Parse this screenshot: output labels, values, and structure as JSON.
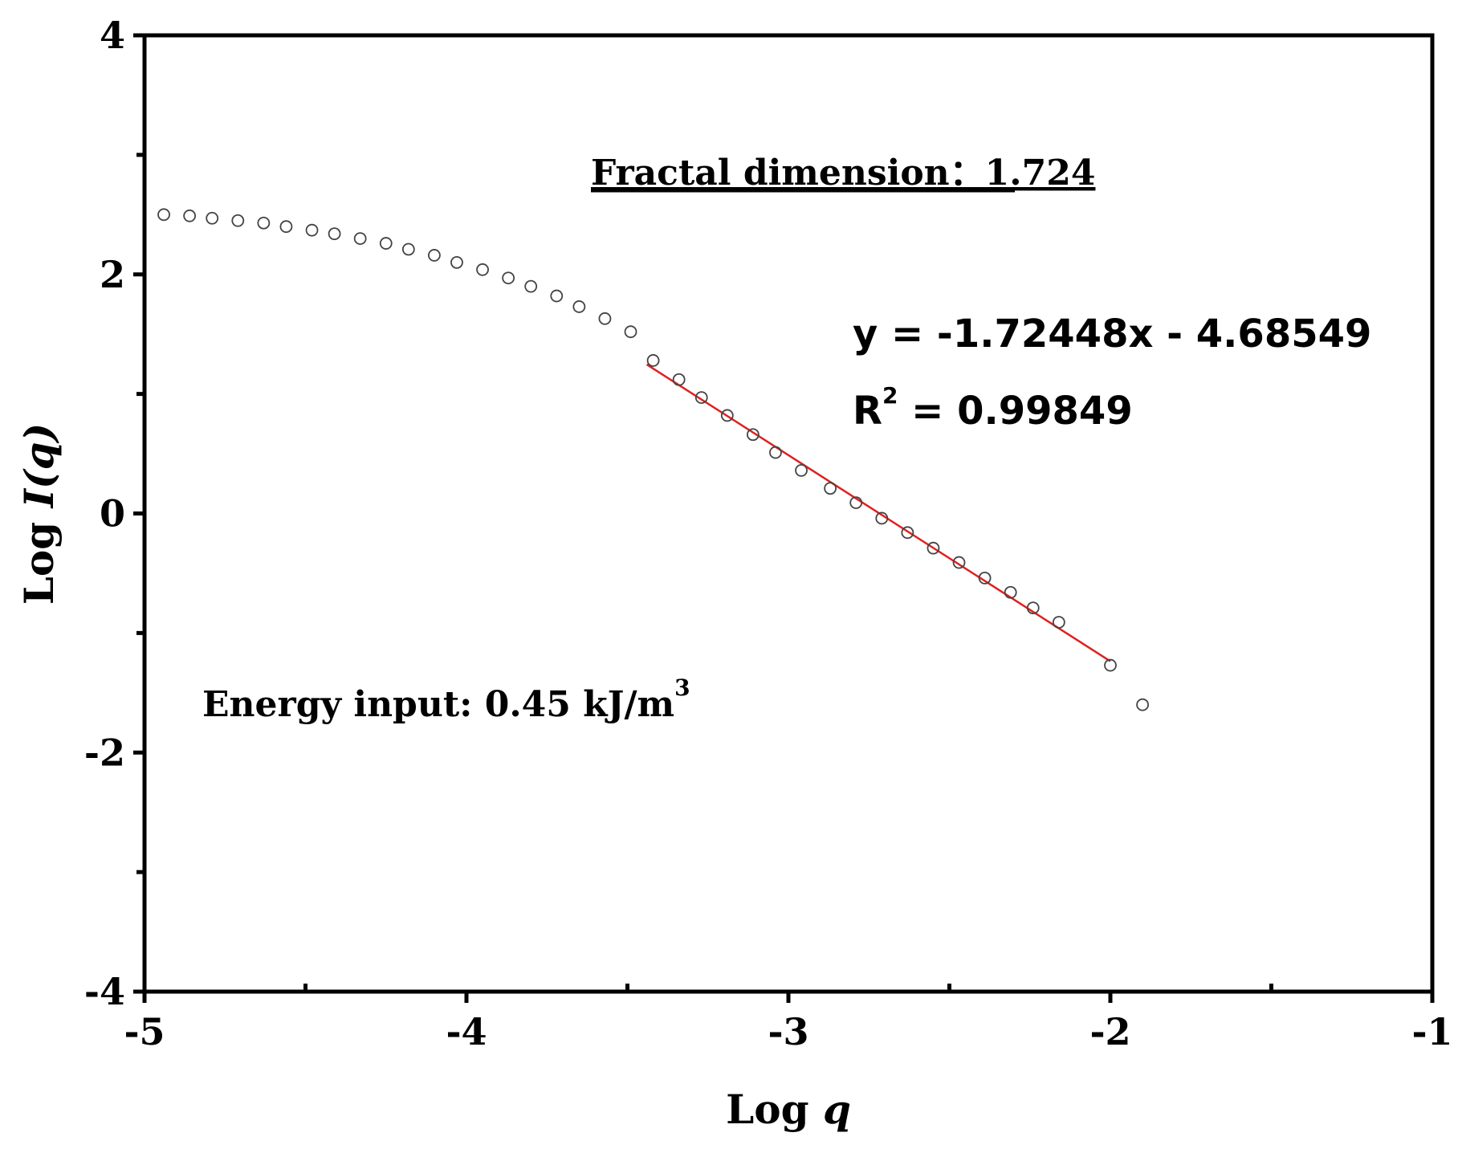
{
  "chart_data": {
    "type": "scatter",
    "title": "",
    "xlabel": {
      "prefix": "Log ",
      "var": "q"
    },
    "ylabel": {
      "prefix": "Log ",
      "var": "I(q)"
    },
    "xlim": [
      -5,
      -1
    ],
    "ylim": [
      -4,
      4
    ],
    "x_ticks": [
      -5,
      -4,
      -3,
      -2,
      -1
    ],
    "x_tick_labels": [
      "-5",
      "-4",
      "-3",
      "-2",
      "-1"
    ],
    "x_minor_ticks": [
      -4.5,
      -3.5,
      -2.5,
      -1.5
    ],
    "y_ticks": [
      -4,
      -2,
      0,
      2,
      4
    ],
    "y_tick_labels": [
      "-4",
      "-2",
      "0",
      "2",
      "4"
    ],
    "y_minor_ticks": [
      -3,
      -1,
      1,
      3
    ],
    "grid": false,
    "series": [
      {
        "name": "Log I(q)",
        "marker": "open-circle",
        "x": [
          -4.94,
          -4.86,
          -4.79,
          -4.71,
          -4.63,
          -4.56,
          -4.48,
          -4.41,
          -4.33,
          -4.25,
          -4.18,
          -4.1,
          -4.03,
          -3.95,
          -3.87,
          -3.8,
          -3.72,
          -3.65,
          -3.57,
          -3.49,
          -3.42,
          -3.34,
          -3.27,
          -3.19,
          -3.11,
          -3.04,
          -2.96,
          -2.87,
          -2.79,
          -2.71,
          -2.63,
          -2.55,
          -2.47,
          -2.39,
          -2.31,
          -2.24,
          -2.16,
          -2.0,
          -1.9
        ],
        "y": [
          2.5,
          2.49,
          2.47,
          2.45,
          2.43,
          2.4,
          2.37,
          2.34,
          2.3,
          2.26,
          2.21,
          2.16,
          2.1,
          2.04,
          1.97,
          1.9,
          1.82,
          1.73,
          1.63,
          1.52,
          1.28,
          1.12,
          0.97,
          0.82,
          0.66,
          0.51,
          0.36,
          0.21,
          0.09,
          -0.04,
          -0.16,
          -0.29,
          -0.41,
          -0.54,
          -0.66,
          -0.79,
          -0.91,
          -1.27,
          -1.6
        ]
      }
    ],
    "fit_line": {
      "name": "Linear fit",
      "color": "#e02020",
      "slope": -1.72448,
      "intercept": -4.68549,
      "x_range": [
        -3.44,
        -2.0
      ]
    },
    "annotations": {
      "fractal": "Fractal dimension：1.724",
      "equation": "y =  -1.72448x - 4.68549",
      "r2_base": "R",
      "r2_sup": "2",
      "r2_value": " = 0.99849",
      "energy_base": "Energy input: 0.45 kJ/m",
      "energy_sup": "3"
    }
  },
  "colors": {
    "axis": "#000000",
    "marker": "#444444",
    "fit": "#e02020"
  }
}
